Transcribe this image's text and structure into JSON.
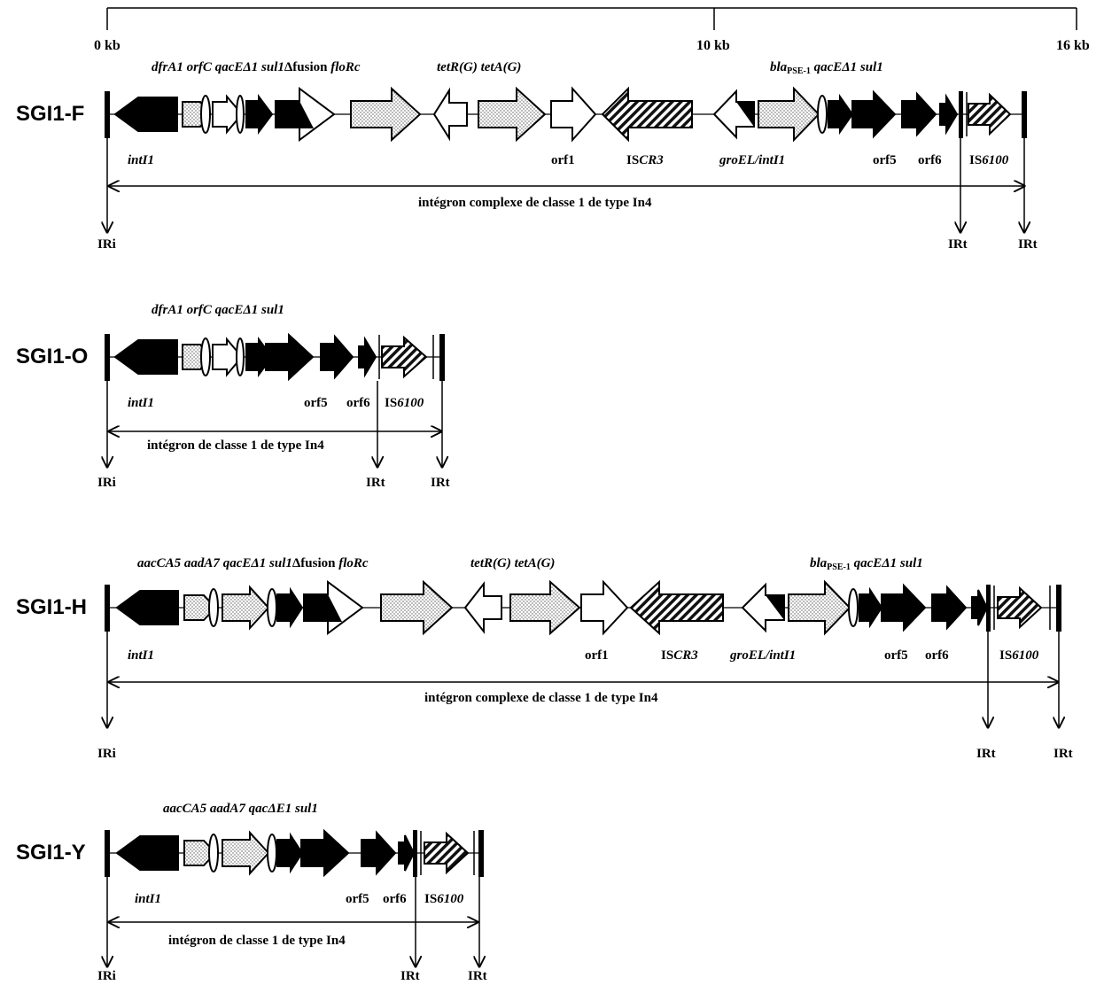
{
  "scale": {
    "start": "0 kb",
    "mid": "10 kb",
    "end": "16 kb"
  },
  "common": {
    "intI1": "intI1",
    "orf1": "orf1",
    "iscr3_prefix": "IS",
    "iscr3_italic": "CR3",
    "groel": "groEL/intI1",
    "orf5": "orf5",
    "orf6": "orf6",
    "is6100_prefix": "IS",
    "is6100_italic": "6100",
    "iri": "IRi",
    "irt": "IRt",
    "tet": "tetR(G) tetA(G)",
    "bla": "bla",
    "bla_sub": "PSE-1",
    "bla_rest": "qacEΔ1 sul1"
  },
  "diagrams": [
    {
      "id": "SGI1-F",
      "label": "SGI1-F",
      "cassette_1": "dfrA1",
      "cassette_2": "orfC",
      "cassette_3": "qacEΔ1",
      "cassette_4": "sul1",
      "fusion": "Δfusion",
      "florc": "floRc",
      "span": "intégron complexe de classe 1 de type In4"
    },
    {
      "id": "SGI1-O",
      "label": "SGI1-O",
      "cassettes": "dfrA1 orfC qacEΔ1 sul1",
      "span": "intégron de classe 1 de type In4"
    },
    {
      "id": "SGI1-H",
      "label": "SGI1-H",
      "cassette_1": "aacCA5",
      "cassette_2": "aadA7",
      "cassette_3": "qacEΔ1",
      "cassette_4": "sul1",
      "fusion": "Δfusion",
      "florc": "floRc",
      "span": "intégron complexe de classe 1 de type In4"
    },
    {
      "id": "SGI1-Y",
      "label": "SGI1-Y",
      "cassettes": "aacCA5 aadA7 qacΔE1 sul1",
      "span": "intégron de classe 1 de type In4"
    }
  ]
}
